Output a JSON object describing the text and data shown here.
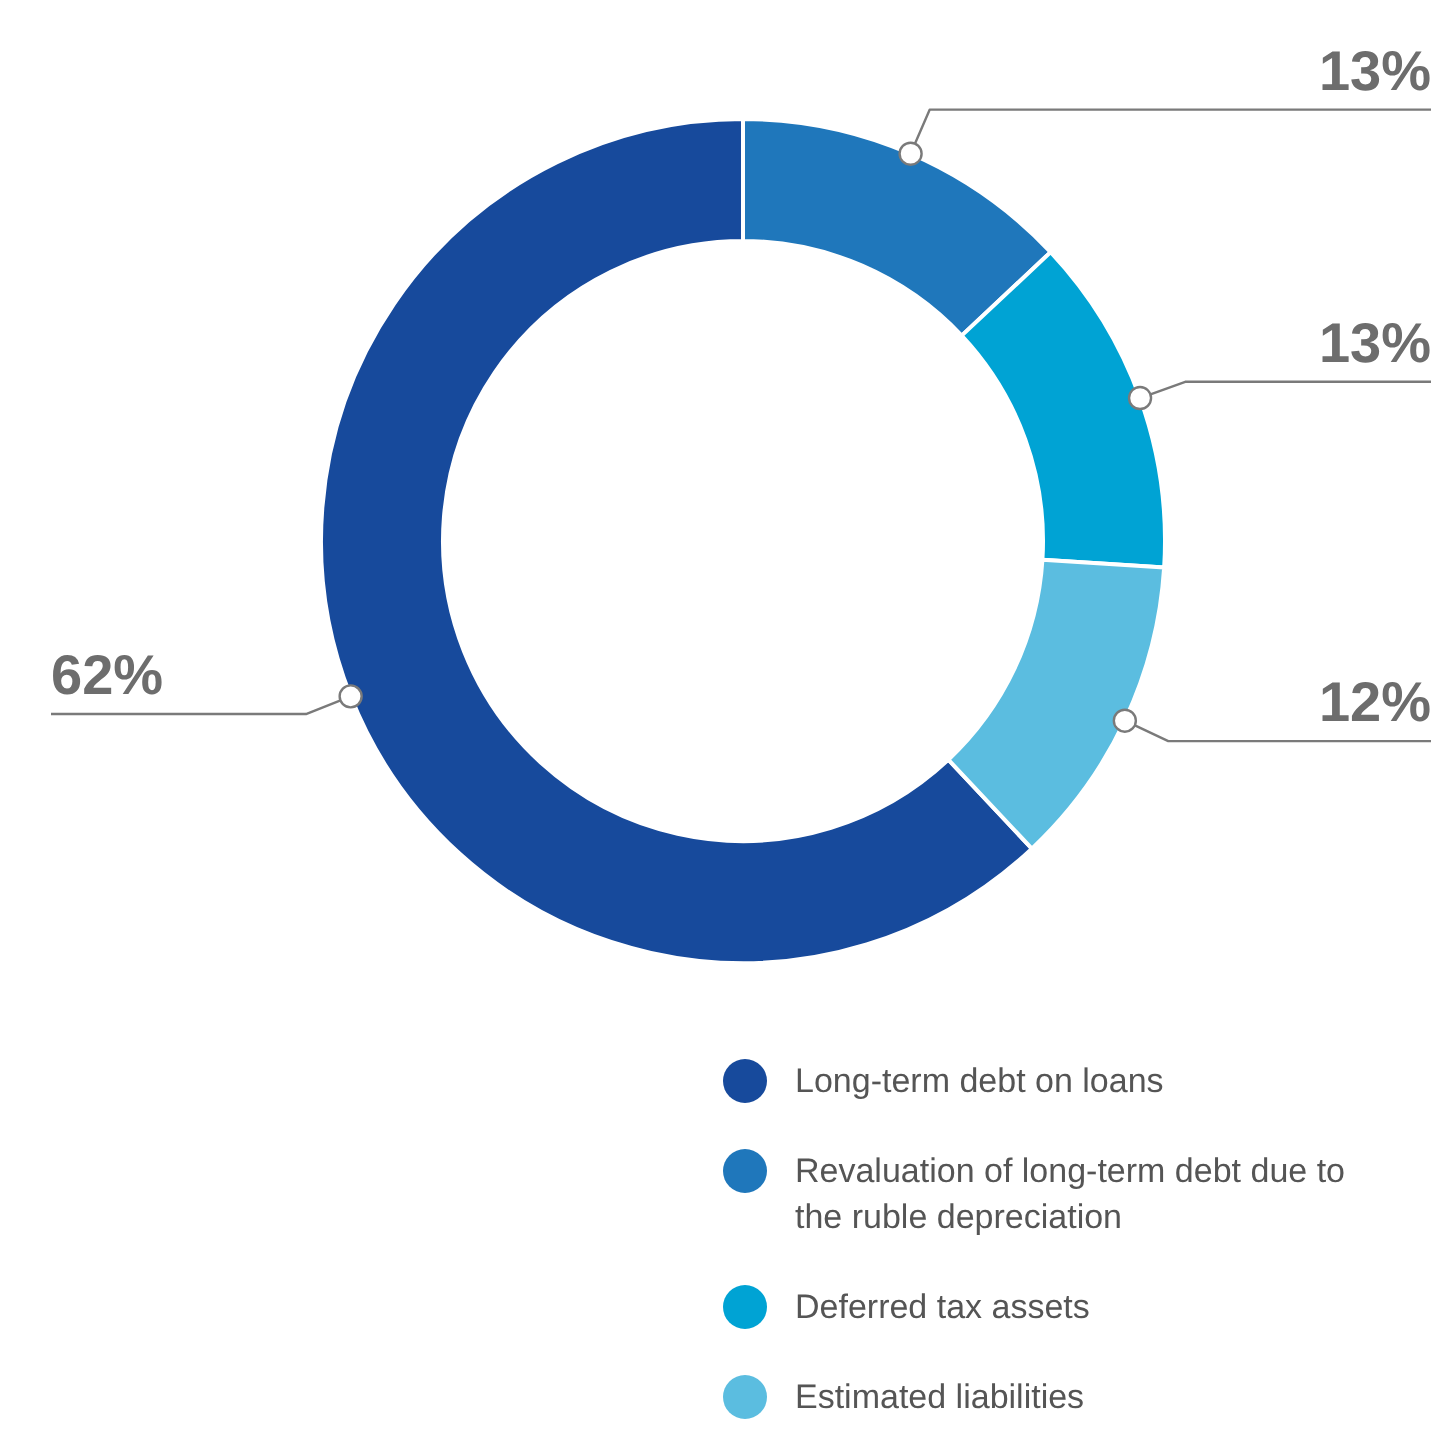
{
  "chart_data": {
    "type": "donut",
    "categories": [
      "Long-term debt on loans",
      "Revaluation of long-term debt due to the ruble depreciation",
      "Deferred tax assets",
      "Estimated liabilities"
    ],
    "values": [
      62,
      13,
      13,
      12
    ],
    "colors": [
      "#174a9c",
      "#1f77bb",
      "#00a3d4",
      "#5bbde0"
    ],
    "value_labels": [
      "62%",
      "13%",
      "13%",
      "12%"
    ],
    "legend": "bottom"
  }
}
